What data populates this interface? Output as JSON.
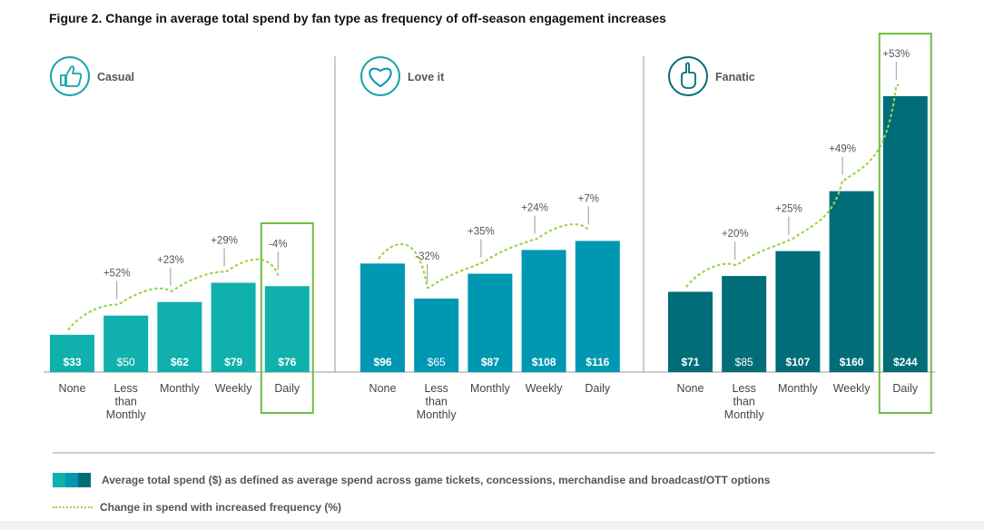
{
  "figure_title": "Figure 2. Change in average total spend by fan type as frequency of off-season engagement increases",
  "legend": {
    "bars_label": "Average total spend ($) as defined as average spend across game tickets, concessions, merchandise and broadcast/OTT options",
    "line_label": "Change in spend with increased frequency (%)"
  },
  "colors": {
    "casual": "#10b0ad",
    "loveit": "#0097b2",
    "fanatic": "#006d78",
    "dots": "#9bd44d",
    "highlight_box": "#6fbe44",
    "icon_ring": "#12a3a7"
  },
  "chart_data": {
    "type": "bar",
    "title": "Figure 2. Change in average total spend by fan type as frequency of off-season engagement increases",
    "xlabel": "",
    "ylabel": "Average total spend ($)",
    "ylim": [
      0,
      260
    ],
    "categories": [
      "None",
      "Less than Monthly",
      "Monthly",
      "Weekly",
      "Daily"
    ],
    "category_lines": [
      [
        "None"
      ],
      [
        "Less",
        "than",
        "Monthly"
      ],
      [
        "Monthly"
      ],
      [
        "Weekly"
      ],
      [
        "Daily"
      ]
    ],
    "series": [
      {
        "name": "Casual",
        "icon": "thumbs-up-icon",
        "values": [
          33,
          50,
          62,
          79,
          76
        ],
        "labels": [
          "$33",
          "$50",
          "$62",
          "$79",
          "$76"
        ],
        "change_labels": [
          "",
          "+52%",
          "+23%",
          "+29%",
          "-4%"
        ],
        "highlight_category": "Daily"
      },
      {
        "name": "Love it",
        "icon": "heart-icon",
        "values": [
          96,
          65,
          87,
          108,
          116
        ],
        "labels": [
          "$96",
          "$65",
          "$87",
          "$108",
          "$116"
        ],
        "change_labels": [
          "",
          "-32%",
          "+35%",
          "+24%",
          "+7%"
        ],
        "highlight_category": ""
      },
      {
        "name": "Fanatic",
        "icon": "foam-finger-icon",
        "values": [
          71,
          85,
          107,
          160,
          244
        ],
        "labels": [
          "$71",
          "$85",
          "$107",
          "$160",
          "$244"
        ],
        "change_labels": [
          "",
          "+20%",
          "+25%",
          "+49%",
          "+53%"
        ],
        "highlight_category": "Daily"
      }
    ]
  }
}
